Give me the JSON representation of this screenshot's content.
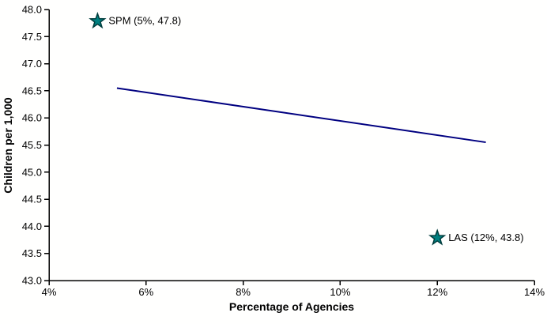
{
  "chart_data": {
    "type": "line",
    "title": "",
    "xlabel": "Percentage of Agencies",
    "ylabel": "Children per 1,000",
    "xlim": [
      4,
      14
    ],
    "ylim": [
      43,
      48
    ],
    "x_ticks": [
      4,
      6,
      8,
      10,
      12,
      14
    ],
    "x_tick_labels": [
      "4%",
      "6%",
      "8%",
      "10%",
      "12%",
      "14%"
    ],
    "y_ticks": [
      43,
      43.5,
      44,
      44.5,
      45,
      45.5,
      46,
      46.5,
      47,
      47.5,
      48
    ],
    "y_tick_labels": [
      "43.0",
      "43.5",
      "44.0",
      "44.5",
      "45.0",
      "45.5",
      "46.0",
      "46.5",
      "47.0",
      "47.5",
      "48.0"
    ],
    "grid": false,
    "legend_position": "none",
    "series": [
      {
        "name": "trend-line",
        "type": "line",
        "color": "#000080",
        "points": [
          {
            "x": 5.4,
            "y": 46.55
          },
          {
            "x": 13.0,
            "y": 45.55
          }
        ]
      }
    ],
    "annotations": [
      {
        "id": "SPM",
        "x": 5,
        "y": 47.8,
        "label": "SPM (5%, 47.8)",
        "marker": "star"
      },
      {
        "id": "LAS",
        "x": 12,
        "y": 43.8,
        "label": "LAS (12%, 43.8)",
        "marker": "star"
      }
    ],
    "colors": {
      "trendline": "#000080",
      "marker_fill": "#008080",
      "marker_stroke": "#003d3d",
      "axis": "#000000",
      "text": "#000000",
      "background": "#ffffff"
    }
  }
}
